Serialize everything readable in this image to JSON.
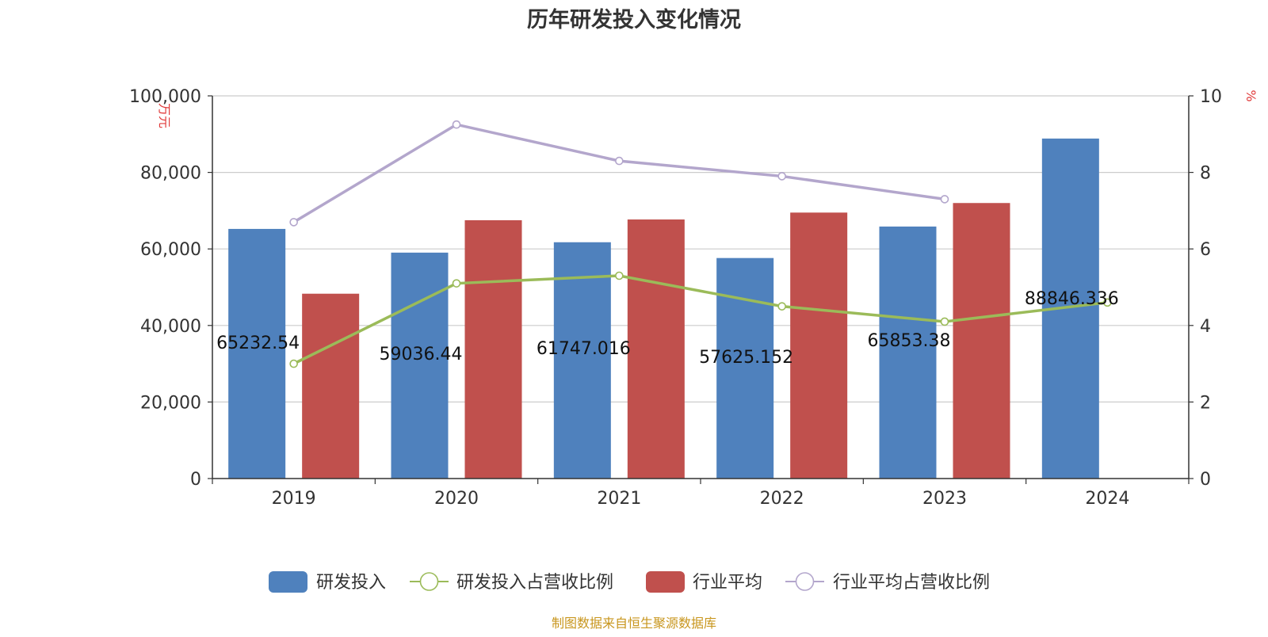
{
  "chart_data": {
    "type": "bar",
    "title": "历年研发投入变化情况",
    "categories": [
      "2019",
      "2020",
      "2021",
      "2022",
      "2023",
      "2024"
    ],
    "y_left": {
      "label": "万元",
      "ylim": [
        0,
        100000
      ],
      "ticks": [
        "0",
        "20,000",
        "40,000",
        "60,000",
        "80,000",
        "100,000"
      ]
    },
    "y_right": {
      "label": "%",
      "ylim": [
        0,
        10
      ],
      "ticks": [
        "0",
        "2",
        "4",
        "6",
        "8",
        "10"
      ]
    },
    "grid": true,
    "legend_position": "bottom",
    "series": [
      {
        "name": "研发投入",
        "kind": "bar",
        "axis": "left",
        "color": "#4f81bd",
        "values": [
          65232.54,
          59036.44,
          61747.016,
          57625.152,
          65853.38,
          88846.336
        ],
        "labels": [
          "65232.54",
          "59036.44",
          "61747.016",
          "57625.152",
          "65853.38",
          "88846.336"
        ]
      },
      {
        "name": "研发投入占营收比例",
        "kind": "line",
        "axis": "right",
        "color": "#9bbb59",
        "values": [
          3.0,
          5.1,
          5.3,
          4.5,
          4.1,
          4.6
        ]
      },
      {
        "name": "行业平均",
        "kind": "bar",
        "axis": "left",
        "color": "#c0504d",
        "values": [
          48300,
          67500,
          67700,
          69500,
          72000,
          null
        ]
      },
      {
        "name": "行业平均占营收比例",
        "kind": "line",
        "axis": "right",
        "color": "#b3a6cc",
        "values": [
          6.7,
          9.25,
          8.3,
          7.9,
          7.3,
          null
        ]
      }
    ],
    "source_note": "制图数据来自恒生聚源数据库"
  }
}
